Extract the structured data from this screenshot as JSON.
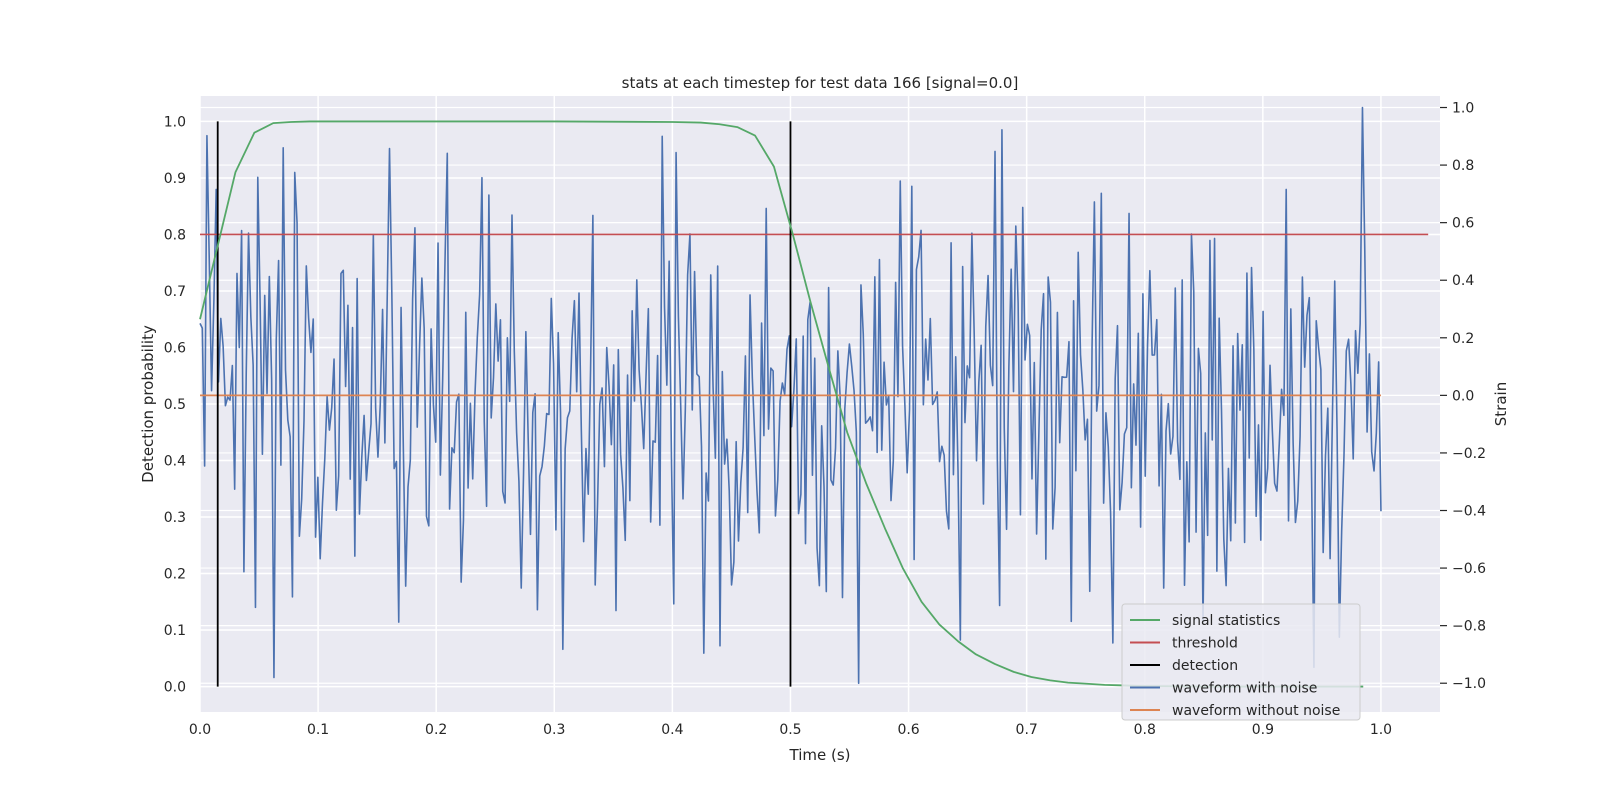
{
  "chart_data": {
    "type": "line",
    "title": "stats at each timestep for test data 166 [signal=0.0]",
    "xlabel": "Time (s)",
    "ylabel": "Detection probability",
    "y2label": "Strain",
    "xlim": [
      0.0,
      1.05
    ],
    "ylim": [
      -0.045,
      1.045
    ],
    "y2lim": [
      -1.1,
      1.04
    ],
    "xticks": [
      "0.0",
      "0.1",
      "0.2",
      "0.3",
      "0.4",
      "0.5",
      "0.6",
      "0.7",
      "0.8",
      "0.9",
      "1.0"
    ],
    "yticks": [
      "0.0",
      "0.1",
      "0.2",
      "0.3",
      "0.4",
      "0.5",
      "0.6",
      "0.7",
      "0.8",
      "0.9",
      "1.0"
    ],
    "y2ticks": [
      "−1.0",
      "−0.8",
      "−0.6",
      "−0.4",
      "−0.2",
      "0.0",
      "0.2",
      "0.4",
      "0.6",
      "0.8",
      "1.0"
    ],
    "grid": true,
    "legend_position": "lower-right",
    "series": [
      {
        "name": "signal statistics",
        "axis": "left",
        "color": "#55a868",
        "x": [
          0.0,
          0.015,
          0.03,
          0.046,
          0.062,
          0.077,
          0.093,
          0.108,
          0.2,
          0.3,
          0.4,
          0.424,
          0.44,
          0.455,
          0.47,
          0.486,
          0.502,
          0.517,
          0.533,
          0.548,
          0.564,
          0.58,
          0.595,
          0.611,
          0.626,
          0.642,
          0.657,
          0.673,
          0.689,
          0.704,
          0.72,
          0.735,
          0.751,
          0.766,
          0.782,
          0.797,
          0.85,
          0.9,
          0.95,
          0.985
        ],
        "y": [
          0.65,
          0.78,
          0.91,
          0.98,
          0.997,
          0.999,
          1.0,
          1.0,
          1.0,
          1.0,
          0.999,
          0.998,
          0.995,
          0.99,
          0.975,
          0.92,
          0.8,
          0.68,
          0.56,
          0.45,
          0.36,
          0.28,
          0.21,
          0.15,
          0.11,
          0.08,
          0.057,
          0.04,
          0.026,
          0.017,
          0.011,
          0.007,
          0.005,
          0.003,
          0.002,
          0.001,
          0.0,
          0.0,
          0.0,
          0.0
        ]
      },
      {
        "name": "threshold",
        "axis": "left",
        "color": "#c44e52",
        "x": [
          0.0,
          1.04
        ],
        "y": [
          0.8,
          0.8
        ]
      },
      {
        "name": "detection",
        "axis": "left",
        "color": "#000000",
        "x": [
          0.015,
          0.5
        ],
        "y": [
          1.0,
          1.0
        ]
      },
      {
        "name": "waveform with noise",
        "axis": "right",
        "color": "#4c72b0",
        "x_range": [
          0.0,
          1.0
        ],
        "points": 512,
        "y_range": [
          -1.0,
          1.0
        ],
        "notable_points": [
          [
            0.0,
            0.25
          ],
          [
            0.062,
            -0.98
          ],
          [
            0.07,
            0.86
          ],
          [
            0.078,
            -0.7
          ],
          [
            0.392,
            0.9
          ],
          [
            0.44,
            -0.87
          ],
          [
            0.558,
            -1.0
          ],
          [
            0.643,
            -0.85
          ],
          [
            0.985,
            1.0
          ],
          [
            0.965,
            -0.84
          ]
        ]
      },
      {
        "name": "waveform without noise",
        "axis": "right",
        "color": "#dd8452",
        "x": [
          0.0,
          1.0
        ],
        "y": [
          0.0,
          0.0
        ]
      }
    ]
  }
}
